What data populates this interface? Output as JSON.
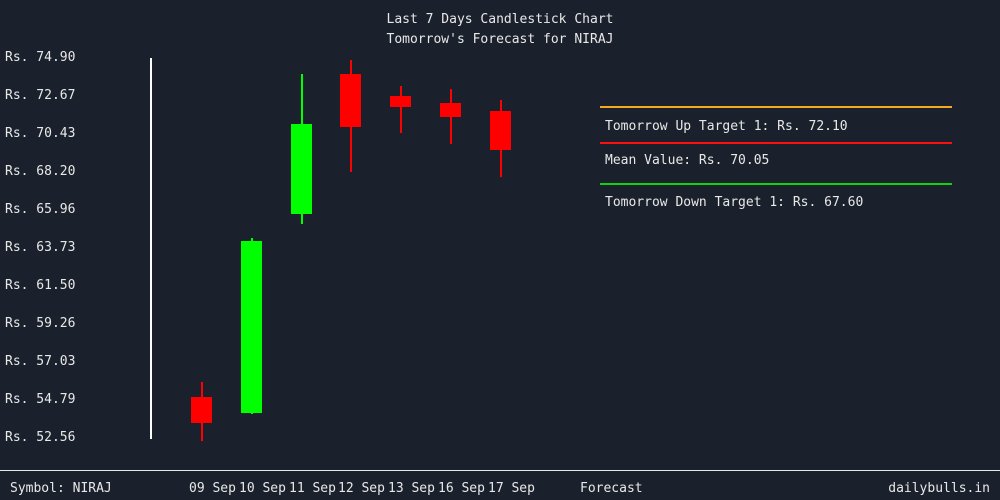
{
  "title": {
    "line1": "Last 7 Days Candlestick Chart",
    "line2": "Tomorrow's Forecast for NIRAJ"
  },
  "chart_data": {
    "type": "candlestick",
    "symbol": "NIRAJ",
    "categories": [
      "09 Sep",
      "10 Sep",
      "11 Sep",
      "12 Sep",
      "13 Sep",
      "16 Sep",
      "17 Sep"
    ],
    "candles": [
      {
        "date": "09 Sep",
        "open": 54.95,
        "high": 55.85,
        "low": 52.4,
        "close": 53.45
      },
      {
        "date": "10 Sep",
        "open": 54.05,
        "high": 64.3,
        "low": 54.0,
        "close": 64.15
      },
      {
        "date": "11 Sep",
        "open": 65.75,
        "high": 73.95,
        "low": 65.15,
        "close": 71.0
      },
      {
        "date": "12 Sep",
        "open": 73.95,
        "high": 74.8,
        "low": 68.2,
        "close": 70.85
      },
      {
        "date": "13 Sep",
        "open": 72.65,
        "high": 73.25,
        "low": 70.5,
        "close": 72.0
      },
      {
        "date": "16 Sep",
        "open": 72.25,
        "high": 73.1,
        "low": 69.85,
        "close": 71.45
      },
      {
        "date": "17 Sep",
        "open": 71.8,
        "high": 72.45,
        "low": 67.9,
        "close": 69.5
      }
    ],
    "ylim": [
      52.56,
      74.9
    ],
    "y_tick_labels": [
      "Rs. 74.90",
      "Rs. 72.67",
      "Rs. 70.43",
      "Rs. 68.20",
      "Rs. 65.96",
      "Rs. 63.73",
      "Rs. 61.50",
      "Rs. 59.26",
      "Rs. 57.03",
      "Rs. 54.79",
      "Rs. 52.56"
    ],
    "y_tick_values": [
      74.9,
      72.67,
      70.43,
      68.2,
      65.96,
      63.73,
      61.5,
      59.26,
      57.03,
      54.79,
      52.56
    ],
    "grid": "off",
    "up_color": "#00ff00",
    "down_color": "#ff0000",
    "background_color": "#1b212c",
    "axis_color": "#ffffff",
    "text_color": "#e8e8e8"
  },
  "forecast_panel": {
    "up_target": {
      "label": "Tomorrow Up Target 1: Rs. 72.10",
      "value": 72.1,
      "line_color": "#f5a623"
    },
    "mean": {
      "label": "Mean Value: Rs. 70.05",
      "value": 70.05,
      "line_color": "#ff1010"
    },
    "down_target": {
      "label": "Tomorrow Down Target 1: Rs. 67.60",
      "value": 67.6,
      "line_color": "#10d010"
    }
  },
  "footer": {
    "symbol_label": "Symbol: NIRAJ",
    "forecast_label": "Forecast",
    "watermark": "dailybulls.in"
  }
}
